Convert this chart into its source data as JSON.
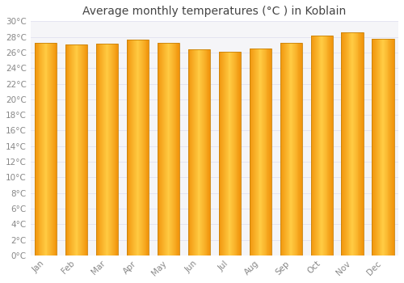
{
  "title": "Average monthly temperatures (°C ) in Koblain",
  "months": [
    "Jan",
    "Feb",
    "Mar",
    "Apr",
    "May",
    "Jun",
    "Jul",
    "Aug",
    "Sep",
    "Oct",
    "Nov",
    "Dec"
  ],
  "temperatures": [
    27.2,
    27.0,
    27.1,
    27.6,
    27.2,
    26.4,
    26.1,
    26.5,
    27.2,
    28.2,
    28.6,
    27.8
  ],
  "ylim": [
    0,
    30
  ],
  "yticks": [
    0,
    2,
    4,
    6,
    8,
    10,
    12,
    14,
    16,
    18,
    20,
    22,
    24,
    26,
    28,
    30
  ],
  "bar_color_center": "#FFCC44",
  "bar_color_edge": "#F0920A",
  "bar_outline_color": "#C8820A",
  "background_color": "#FFFFFF",
  "plot_bg_color": "#F5F5F8",
  "grid_color": "#DDDDEE",
  "title_fontsize": 10,
  "tick_fontsize": 7.5,
  "tick_color": "#888888",
  "title_color": "#444444"
}
